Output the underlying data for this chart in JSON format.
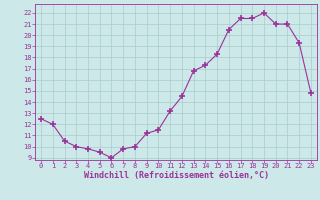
{
  "x": [
    0,
    1,
    2,
    3,
    4,
    5,
    6,
    7,
    8,
    9,
    10,
    11,
    12,
    13,
    14,
    15,
    16,
    17,
    18,
    19,
    20,
    21,
    22,
    23
  ],
  "y": [
    12.5,
    12.0,
    10.5,
    10.0,
    9.8,
    9.5,
    9.0,
    9.8,
    10.0,
    11.2,
    11.5,
    13.2,
    14.5,
    16.8,
    17.3,
    18.3,
    20.5,
    21.5,
    21.5,
    22.0,
    21.0,
    21.0,
    19.3,
    14.8
  ],
  "xlabel": "Windchill (Refroidissement éolien,°C)",
  "ylim": [
    8.8,
    22.8
  ],
  "xlim": [
    -0.5,
    23.5
  ],
  "yticks": [
    9,
    10,
    11,
    12,
    13,
    14,
    15,
    16,
    17,
    18,
    19,
    20,
    21,
    22
  ],
  "xticks": [
    0,
    1,
    2,
    3,
    4,
    5,
    6,
    7,
    8,
    9,
    10,
    11,
    12,
    13,
    14,
    15,
    16,
    17,
    18,
    19,
    20,
    21,
    22,
    23
  ],
  "line_color": "#993399",
  "marker": "+",
  "marker_size": 4,
  "bg_color": "#cce8e8",
  "grid_color": "#aacccc",
  "spine_color": "#993399",
  "label_color": "#993399",
  "tick_color": "#993399",
  "xlabel_fontsize": 6.0,
  "tick_fontsize": 5.0
}
